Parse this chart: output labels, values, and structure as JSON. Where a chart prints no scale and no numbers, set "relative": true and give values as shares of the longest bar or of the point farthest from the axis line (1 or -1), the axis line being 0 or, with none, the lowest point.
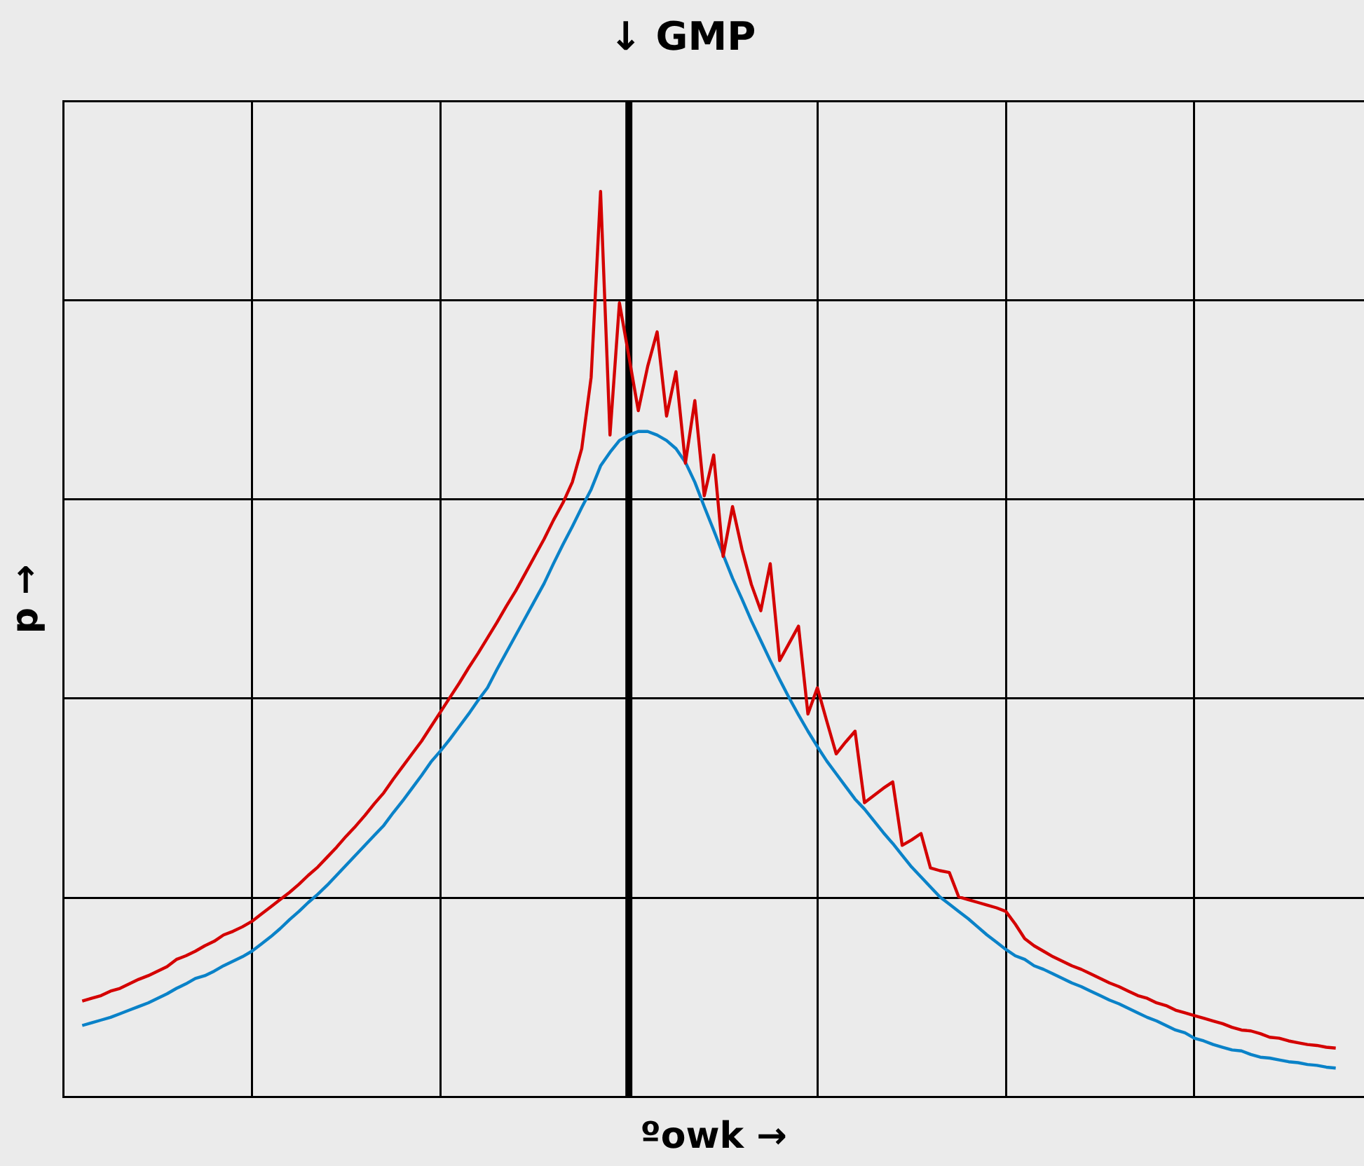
{
  "chart_data": {
    "type": "line",
    "xlabel": "ºowk →",
    "ylabel": "p →",
    "relative": true,
    "grid": true,
    "marker": "none",
    "categories": [
      null,
      null,
      null,
      null,
      null,
      null,
      null,
      null,
      null,
      null,
      null,
      null,
      null,
      null,
      null,
      null,
      null,
      null,
      null,
      null,
      null,
      null,
      null,
      null,
      null,
      null,
      null,
      null,
      null,
      null,
      null,
      null,
      null,
      null,
      null,
      null,
      null,
      null,
      null,
      null,
      null,
      null,
      null,
      null,
      null,
      null,
      null,
      null,
      null,
      null,
      null,
      null,
      null,
      null,
      null,
      null,
      null,
      null,
      null,
      null,
      null,
      null,
      null,
      null,
      null,
      null,
      null,
      null,
      null,
      null,
      null,
      null,
      null,
      null,
      null,
      null,
      null,
      null,
      null,
      null,
      null,
      null,
      null,
      null,
      null,
      null,
      null,
      null,
      null,
      null,
      null,
      null,
      null,
      null,
      null,
      null,
      null,
      null,
      null,
      null,
      null,
      null,
      null,
      null,
      null,
      null,
      null,
      null,
      null,
      null,
      null,
      null,
      null,
      null,
      null,
      null,
      null,
      null,
      null,
      null,
      null,
      null,
      null,
      null,
      null,
      null,
      null,
      null,
      null,
      null,
      null,
      null,
      null,
      null,
      null,
      null,
      null,
      null,
      null
    ],
    "annotations": [
      "↓ GMP"
    ],
    "series": [
      {
        "color": "#d40000",
        "values": [
          null,
          null,
          0.106,
          0.109,
          0.112,
          0.117,
          0.12,
          0.125,
          0.13,
          0.134,
          0.139,
          0.144,
          0.152,
          0.156,
          0.161,
          0.167,
          0.172,
          0.179,
          0.183,
          0.188,
          0.194,
          0.202,
          0.21,
          0.218,
          0.226,
          0.235,
          0.245,
          0.254,
          0.265,
          0.276,
          0.288,
          0.299,
          0.311,
          0.324,
          0.336,
          0.351,
          0.365,
          0.379,
          0.393,
          0.409,
          0.425,
          0.441,
          0.457,
          0.474,
          0.49,
          0.507,
          0.524,
          0.542,
          0.559,
          0.578,
          0.597,
          0.616,
          0.637,
          0.656,
          0.679,
          0.716,
          0.795,
          1,
          0.731,
          0.877,
          0.818,
          0.758,
          0.807,
          0.845,
          0.752,
          0.801,
          0.7,
          0.769,
          0.664,
          0.709,
          0.597,
          0.652,
          0.605,
          0.566,
          0.537,
          0.589,
          0.482,
          0.501,
          0.52,
          0.423,
          0.452,
          0.415,
          0.379,
          0.392,
          0.404,
          0.325,
          0.333,
          0.341,
          0.348,
          0.278,
          0.284,
          0.291,
          0.253,
          0.25,
          0.248,
          0.221,
          0.218,
          0.215,
          0.212,
          0.209,
          0.205,
          0.191,
          0.175,
          0.167,
          0.161,
          0.155,
          0.15,
          0.145,
          0.141,
          0.136,
          0.131,
          0.126,
          0.122,
          0.117,
          0.112,
          0.109,
          0.104,
          0.101,
          0.096,
          0.093,
          0.09,
          0.087,
          0.084,
          0.081,
          0.077,
          0.074,
          0.073,
          0.07,
          0.066,
          0.065,
          0.062,
          0.06,
          0.058,
          0.057,
          0.055,
          0.054,
          null,
          null,
          null
        ]
      },
      {
        "color": "#0a82c8",
        "values": [
          null,
          null,
          0.079,
          0.082,
          0.085,
          0.088,
          0.092,
          0.096,
          0.1,
          0.104,
          0.109,
          0.114,
          0.12,
          0.125,
          0.131,
          0.134,
          0.139,
          0.145,
          0.15,
          0.155,
          0.161,
          0.169,
          0.177,
          0.186,
          0.196,
          0.205,
          0.215,
          0.224,
          0.234,
          0.245,
          0.256,
          0.267,
          0.278,
          0.289,
          0.3,
          0.314,
          0.327,
          0.341,
          0.355,
          0.37,
          0.382,
          0.395,
          0.409,
          0.423,
          0.438,
          0.452,
          0.472,
          0.491,
          0.51,
          0.529,
          0.548,
          0.567,
          0.589,
          0.61,
          0.63,
          0.651,
          0.671,
          0.697,
          0.712,
          0.725,
          0.731,
          0.735,
          0.735,
          0.731,
          0.725,
          0.716,
          0.701,
          0.679,
          0.652,
          0.626,
          0.599,
          0.573,
          0.55,
          0.526,
          0.504,
          0.482,
          0.461,
          0.441,
          0.422,
          0.404,
          0.387,
          0.371,
          0.357,
          0.343,
          0.329,
          0.318,
          0.305,
          0.292,
          0.28,
          0.267,
          0.254,
          0.243,
          0.232,
          0.221,
          0.213,
          0.205,
          0.197,
          0.188,
          0.179,
          0.171,
          0.163,
          0.156,
          0.152,
          0.145,
          0.141,
          0.136,
          0.131,
          0.126,
          0.122,
          0.117,
          0.112,
          0.107,
          0.103,
          0.098,
          0.093,
          0.088,
          0.084,
          0.079,
          0.074,
          0.071,
          0.065,
          0.062,
          0.058,
          0.055,
          0.052,
          0.051,
          0.047,
          0.044,
          0.043,
          0.041,
          0.039,
          0.038,
          0.036,
          0.035,
          0.033,
          0.032,
          null,
          null,
          null
        ]
      }
    ]
  }
}
